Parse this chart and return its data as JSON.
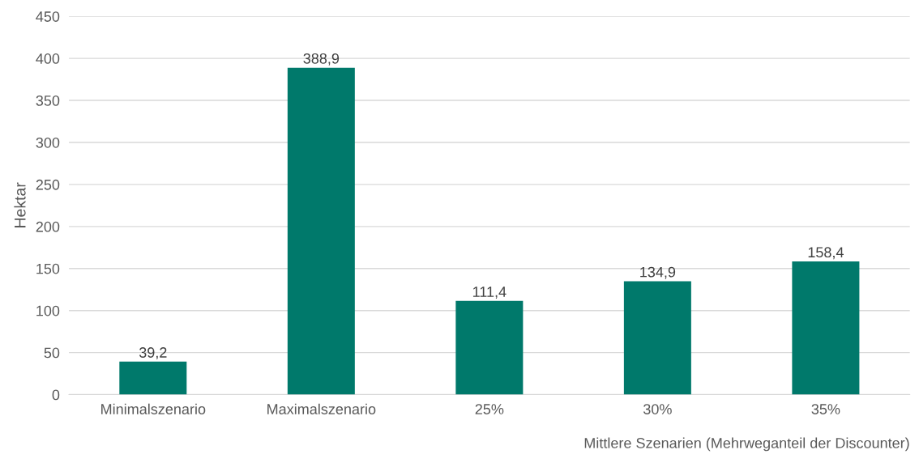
{
  "chart_data": {
    "type": "bar",
    "categories": [
      "Minimalszenario",
      "Maximalszenario",
      "25%",
      "30%",
      "35%"
    ],
    "values": [
      39.2,
      388.9,
      111.4,
      134.9,
      158.4
    ],
    "value_labels": [
      "39,2",
      "388,9",
      "111,4",
      "134,9",
      "158,4"
    ],
    "color": "#00796b",
    "ylabel": "Hektar",
    "xlabel": "Mittlere Szenarien (Mehrweganteil der Discounter)",
    "ylim": [
      0,
      450
    ],
    "yticks": [
      0,
      50,
      100,
      150,
      200,
      250,
      300,
      350,
      400,
      450
    ],
    "grid": "y",
    "legend": false
  }
}
